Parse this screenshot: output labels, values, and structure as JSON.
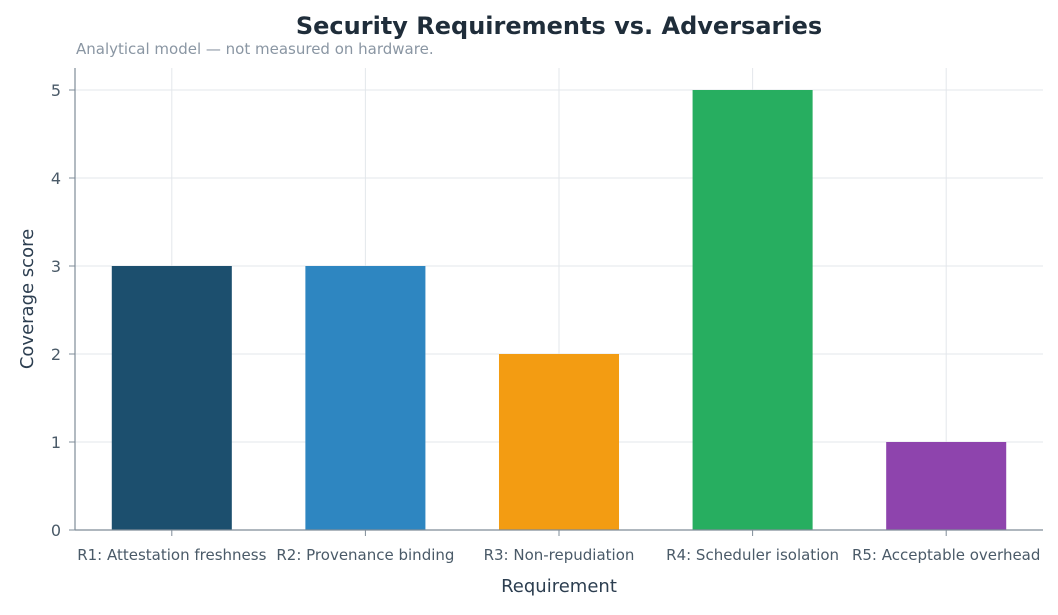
{
  "chart_data": {
    "type": "bar",
    "title": "Security Requirements vs. Adversaries",
    "subtitle": "Analytical model — not measured on hardware.",
    "xlabel": "Requirement",
    "ylabel": "Coverage score",
    "categories": [
      "R1: Attestation freshness",
      "R2: Provenance binding",
      "R3: Non-repudiation",
      "R4: Scheduler isolation",
      "R5: Acceptable overhead"
    ],
    "values": [
      3,
      3,
      2,
      5,
      1
    ],
    "colors": [
      "#1c4f6e",
      "#2e86c1",
      "#f39c12",
      "#27ae60",
      "#8e44ad"
    ],
    "ylim": [
      0,
      5.25
    ],
    "yticks": [
      0,
      1,
      2,
      3,
      4,
      5
    ],
    "grid": true,
    "legend": "none"
  }
}
